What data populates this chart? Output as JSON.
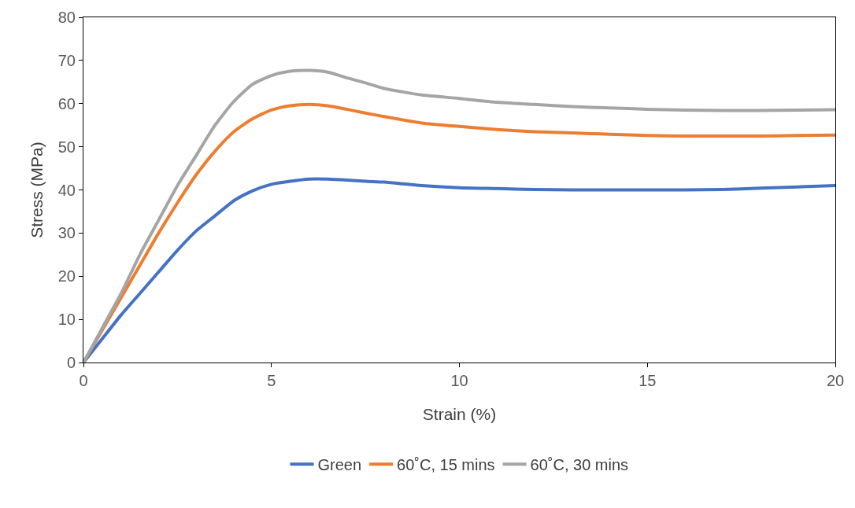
{
  "chart_data": {
    "type": "line",
    "xlabel": "Strain (%)",
    "ylabel": "Stress (MPa)",
    "x": [
      0,
      0.5,
      1,
      1.5,
      2,
      2.5,
      3,
      3.5,
      4,
      4.5,
      5,
      5.5,
      6,
      6.5,
      7,
      7.5,
      8,
      9,
      10,
      11,
      12,
      13,
      14,
      15,
      16,
      17,
      18,
      19,
      20
    ],
    "series": [
      {
        "name": "Green",
        "color": "#4472c4",
        "values": [
          0,
          5.5,
          11,
          16,
          21,
          26,
          30.5,
          34,
          37.5,
          39.8,
          41.3,
          42,
          42.5,
          42.5,
          42.3,
          42,
          41.8,
          41,
          40.5,
          40.3,
          40.1,
          40,
          40,
          40,
          40,
          40.1,
          40.4,
          40.7,
          41
        ]
      },
      {
        "name": "60˚C, 15 mins",
        "color": "#ed7d31",
        "values": [
          0,
          7.5,
          15,
          22.5,
          30,
          37,
          43.5,
          49,
          53.5,
          56.5,
          58.5,
          59.5,
          59.8,
          59.5,
          58.7,
          57.8,
          57,
          55.5,
          54.7,
          54,
          53.5,
          53.2,
          52.9,
          52.6,
          52.5,
          52.5,
          52.5,
          52.6,
          52.7
        ]
      },
      {
        "name": "60˚C, 30 mins",
        "color": "#a5a5a5",
        "values": [
          0,
          8,
          16,
          25,
          33,
          41,
          48,
          55,
          60.5,
          64.5,
          66.5,
          67.5,
          67.7,
          67.3,
          66,
          64.8,
          63.5,
          62,
          61.2,
          60.3,
          59.8,
          59.3,
          59,
          58.7,
          58.5,
          58.4,
          58.4,
          58.5,
          58.6
        ]
      }
    ],
    "xlim": [
      0,
      20
    ],
    "xticks": [
      0,
      5,
      10,
      15,
      20
    ],
    "ylim": [
      0,
      80
    ],
    "yticks": [
      0,
      10,
      20,
      30,
      40,
      50,
      60,
      70,
      80
    ],
    "grid": false,
    "legend": "bottom",
    "marker": "none",
    "line_style": "solid"
  }
}
